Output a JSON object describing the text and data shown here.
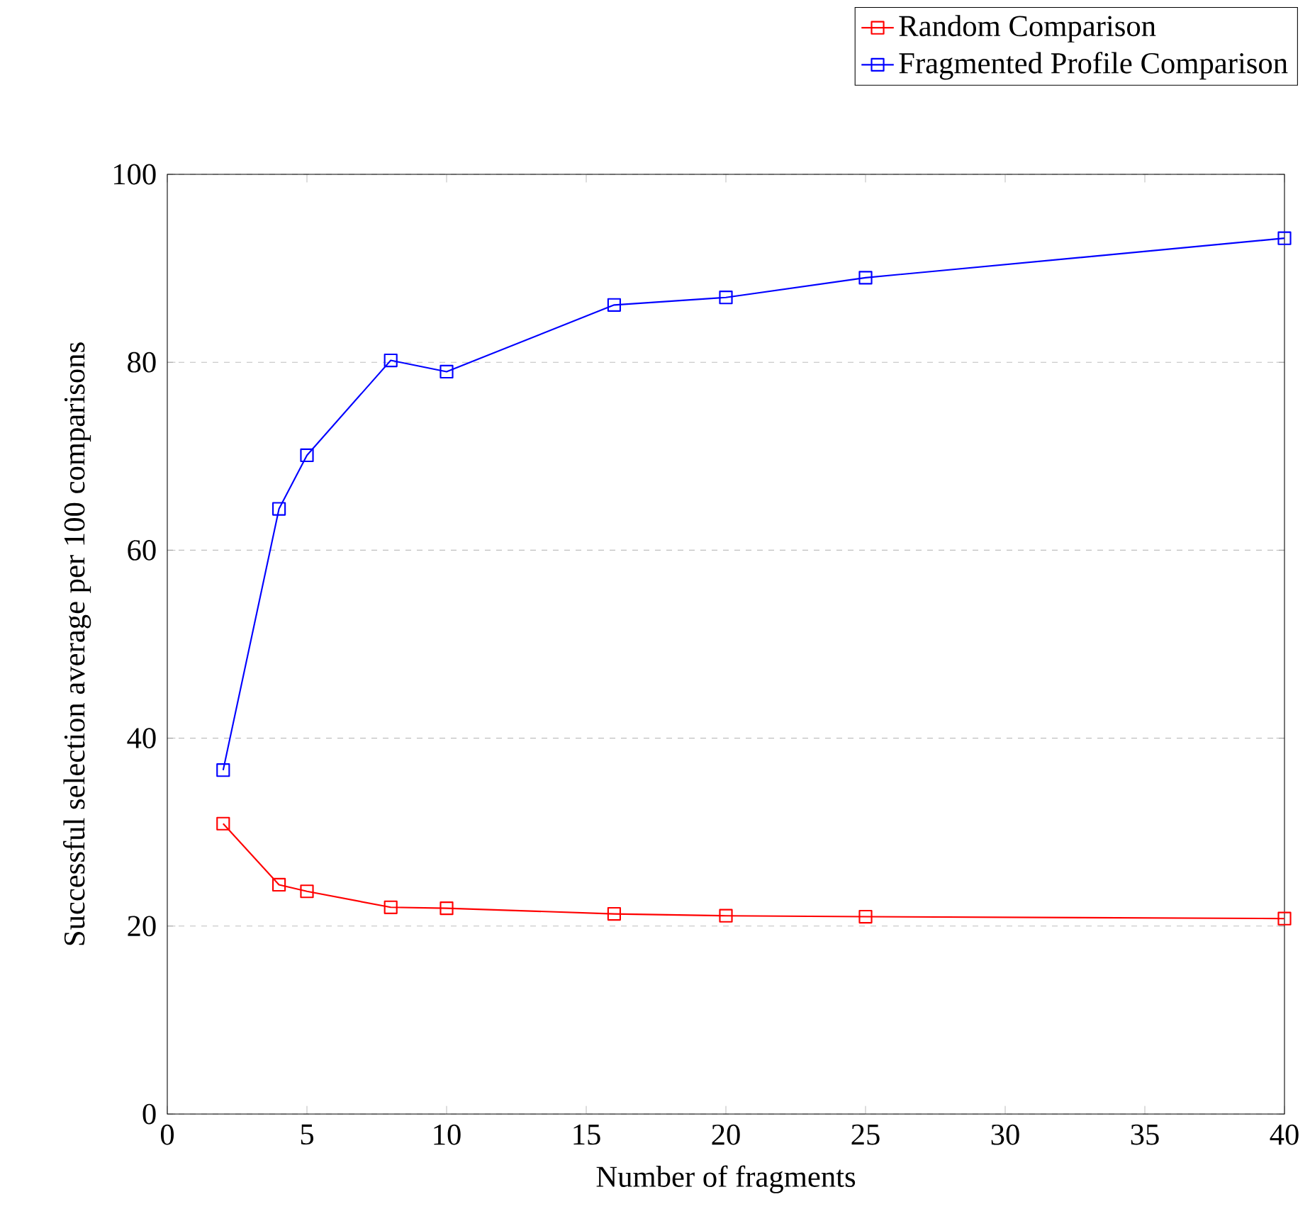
{
  "chart_data": {
    "type": "line",
    "xlabel": "Number of fragments",
    "ylabel": "Successful selection average per 100 comparisons",
    "x": [
      2,
      4,
      5,
      8,
      10,
      16,
      20,
      25,
      40
    ],
    "series": [
      {
        "name": "Random Comparison",
        "color": "#ff0000",
        "values": [
          30.9,
          24.4,
          23.7,
          22.0,
          21.9,
          21.3,
          21.1,
          21.0,
          20.8
        ]
      },
      {
        "name": "Fragmented Profile Comparison",
        "color": "#0000ff",
        "values": [
          36.6,
          64.4,
          70.1,
          80.2,
          79.0,
          86.1,
          86.9,
          89.0,
          93.2
        ]
      }
    ],
    "xlim": [
      0,
      40
    ],
    "ylim": [
      0,
      100
    ],
    "xticks": [
      0,
      5,
      10,
      15,
      20,
      25,
      30,
      35,
      40
    ],
    "yticks": [
      0,
      20,
      40,
      60,
      80,
      100
    ],
    "grid": "y",
    "legend": "top right",
    "marker": "square",
    "line_style": "solid"
  }
}
